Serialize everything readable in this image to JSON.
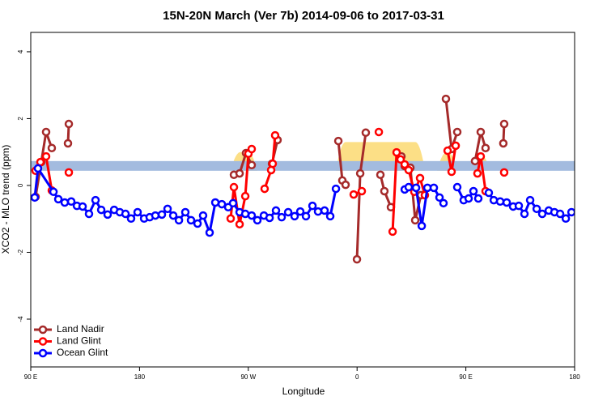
{
  "chart_data": {
    "type": "line",
    "title": "15N-20N March (Ver 7b)   2014-09-06 to 2017-03-31",
    "xlabel": "Longitude",
    "ylabel": "XCO2 - MLO trend (ppm)",
    "xlim": [
      90,
      540
    ],
    "ylim": [
      -5.43,
      4.58
    ],
    "xticks": [
      {
        "value": 90,
        "label": "90 E"
      },
      180,
      {
        "value": 270,
        "label": "90 W"
      },
      {
        "value": 360,
        "label": "0"
      },
      {
        "value": 450,
        "label": "90 E"
      },
      {
        "value": 540,
        "label": "180"
      }
    ],
    "yticks": [
      -4,
      -2,
      0,
      2,
      4
    ],
    "legend": "bottom-left",
    "band": [
      0.44,
      0.73
    ],
    "band_color": "#a3bbdf",
    "highlight_color": "#fcdf86",
    "highlights": [
      {
        "x0": 92.7,
        "x1": 104.7,
        "top": 0.8
      },
      {
        "x0": 255.4,
        "x1": 277.5,
        "top": 1.0
      },
      {
        "x0": 342.5,
        "x1": 416.2,
        "top": 1.3
      },
      {
        "x0": 426.2,
        "x1": 443.0,
        "top": 1.0
      },
      {
        "x0": 456.4,
        "x1": 469.8,
        "top": 0.9
      }
    ],
    "series": [
      {
        "name": "Land Nadir",
        "color": "#a52a2a",
        "x": [
          94.0,
          98.7,
          102.7,
          107.4,
          null,
          120.8,
          121.5,
          null,
          258.1,
          262.8,
          268.1,
          272.8,
          null,
          289.6,
          294.2,
          null,
          344.5,
          347.8,
          350.5,
          null,
          359.9,
          362.6,
          367.2,
          null,
          379.3,
          382.6,
          388.0,
          null,
          396.7,
          399.4,
          404.1,
          408.1,
          412.8,
          null,
          433.5,
          438.2,
          442.9,
          null,
          457.6,
          462.3,
          466.3,
          null,
          481.0,
          481.7
        ],
        "values": [
          -0.34,
          0.7,
          1.6,
          1.12,
          null,
          1.26,
          1.84,
          null,
          0.32,
          0.36,
          0.97,
          0.61,
          null,
          0.65,
          1.36,
          null,
          1.33,
          0.15,
          0.02,
          null,
          -2.21,
          0.36,
          1.58,
          null,
          0.32,
          -0.17,
          -0.65,
          null,
          0.87,
          0.58,
          0.53,
          -1.04,
          -0.29,
          null,
          2.59,
          1.09,
          1.6,
          null,
          0.73,
          1.6,
          1.12,
          null,
          1.26,
          1.84
        ]
      },
      {
        "name": "Land Glint",
        "color": "#ff0000",
        "x": [
          94.0,
          98.0,
          102.7,
          107.4,
          null,
          121.5,
          null,
          255.4,
          258.1,
          262.8,
          267.5,
          270.1,
          272.8,
          null,
          283.5,
          288.9,
          290.2,
          292.2,
          null,
          357.2,
          363.9,
          null,
          378.0,
          null,
          389.4,
          392.7,
          396.0,
          399.4,
          402.7,
          407.4,
          412.1,
          416.1,
          null,
          434.9,
          438.2,
          441.6,
          null,
          459.6,
          462.3,
          466.3,
          null,
          481.7
        ],
        "values": [
          0.44,
          0.7,
          0.87,
          -0.15,
          null,
          0.39,
          null,
          -0.99,
          -0.05,
          -1.16,
          -0.32,
          0.95,
          1.09,
          null,
          -0.1,
          0.46,
          0.65,
          1.5,
          null,
          -0.27,
          -0.17,
          null,
          1.6,
          null,
          -1.38,
          0.99,
          0.78,
          0.63,
          0.46,
          -0.19,
          0.22,
          -0.29,
          null,
          1.04,
          0.41,
          1.19,
          null,
          0.36,
          0.87,
          -0.17,
          null,
          0.39
        ]
      },
      {
        "name": "Ocean Glint",
        "color": "#0000ff",
        "x": [
          93.3,
          96.0,
          108.8,
          112.8,
          118.1,
          123.5,
          128.2,
          132.9,
          138.2,
          143.6,
          148.3,
          153.6,
          159.0,
          163.7,
          168.4,
          173.0,
          178.4,
          183.8,
          188.4,
          193.1,
          198.5,
          203.2,
          207.9,
          212.6,
          217.9,
          222.6,
          228.0,
          232.6,
          238.0,
          242.7,
          248.1,
          253.4,
          257.4,
          262.8,
          267.5,
          272.8,
          277.5,
          282.9,
          287.6,
          292.9,
          297.6,
          303.0,
          308.3,
          313.0,
          317.7,
          323.1,
          327.7,
          333.1,
          337.8,
          342.5,
          null,
          399.4,
          402.7,
          408.8,
          413.5,
          418.2,
          423.5,
          428.2,
          431.5,
          null,
          442.9,
          448.2,
          452.3,
          456.3,
          460.3,
          null,
          469.0,
          473.1,
          478.4,
          483.8,
          489.1,
          493.8,
          498.5,
          503.2,
          508.6,
          513.2,
          518.6,
          523.3,
          528.0,
          532.7,
          537.4
        ],
        "values": [
          -0.36,
          0.51,
          -0.19,
          -0.41,
          -0.51,
          -0.48,
          -0.61,
          -0.63,
          -0.85,
          -0.44,
          -0.73,
          -0.87,
          -0.73,
          -0.8,
          -0.85,
          -0.99,
          -0.8,
          -0.99,
          -0.95,
          -0.9,
          -0.87,
          -0.7,
          -0.9,
          -1.04,
          -0.8,
          -1.04,
          -1.14,
          -0.9,
          -1.41,
          -0.51,
          -0.56,
          -0.65,
          -0.53,
          -0.8,
          -0.85,
          -0.9,
          -1.04,
          -0.9,
          -0.97,
          -0.75,
          -0.95,
          -0.8,
          -0.92,
          -0.78,
          -0.92,
          -0.61,
          -0.78,
          -0.75,
          -0.92,
          -0.1,
          null,
          -0.12,
          -0.05,
          -0.07,
          -1.21,
          -0.07,
          -0.07,
          -0.36,
          -0.53,
          null,
          -0.05,
          -0.44,
          -0.39,
          -0.17,
          -0.39,
          null,
          -0.22,
          -0.44,
          -0.48,
          -0.51,
          -0.63,
          -0.61,
          -0.85,
          -0.44,
          -0.7,
          -0.85,
          -0.75,
          -0.8,
          -0.85,
          -0.99,
          -0.8
        ]
      }
    ]
  }
}
